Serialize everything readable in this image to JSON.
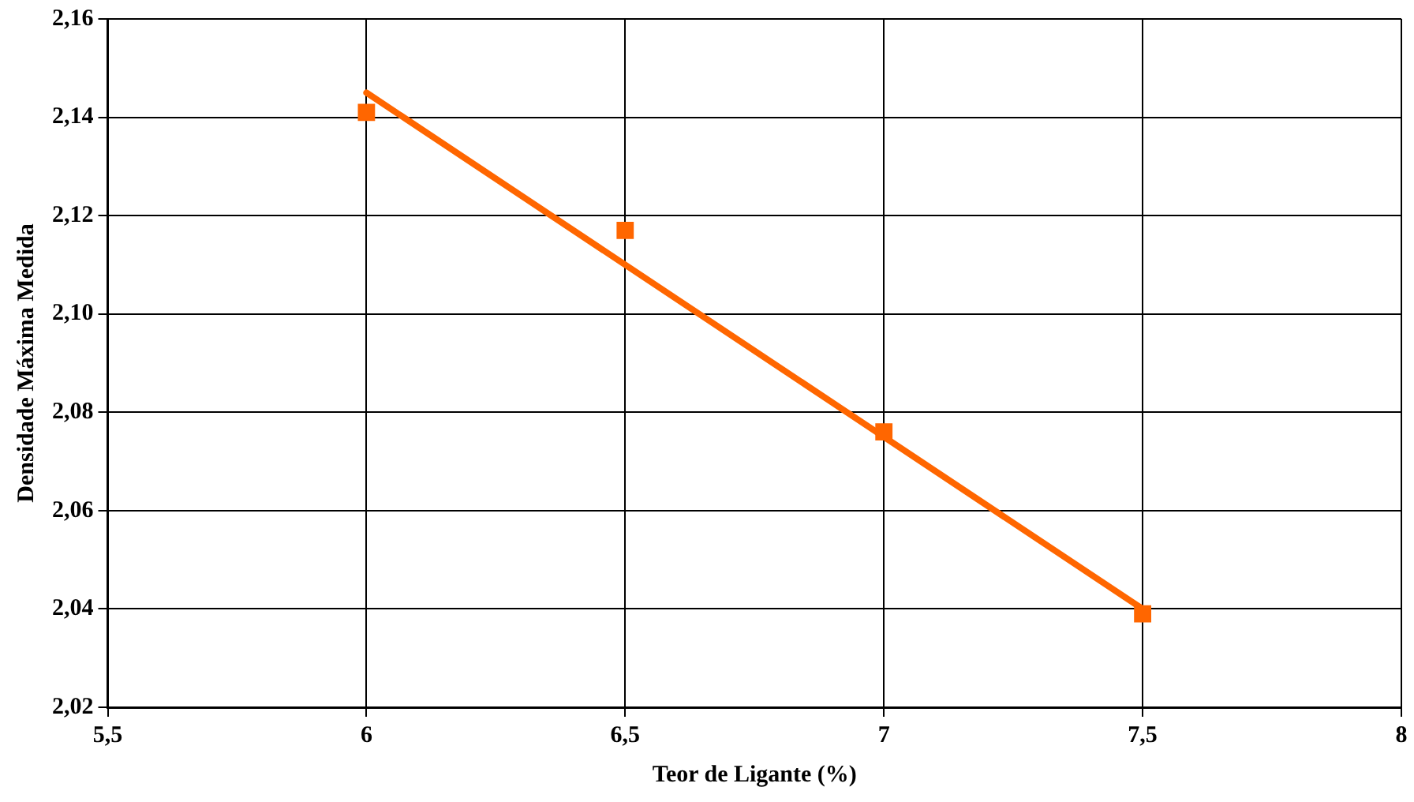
{
  "chart_data": {
    "type": "scatter",
    "xlabel": "Teor de Ligante (%)",
    "ylabel": "Densidade Máxima Medida",
    "series": [
      {
        "color": "#ff6600",
        "marker": "square",
        "x": [
          6,
          6.5,
          7,
          7.5
        ],
        "values": [
          2.141,
          2.117,
          2.076,
          2.039
        ]
      },
      {
        "type": "line",
        "color": "#ff6600",
        "marker": "none",
        "x": [
          6,
          7.5
        ],
        "values": [
          2.145,
          2.04
        ]
      }
    ],
    "xlim": [
      5.5,
      8
    ],
    "xticks": [
      {
        "value": 5.5,
        "label": "5,5"
      },
      6,
      {
        "value": 6.5,
        "label": "6,5"
      },
      7,
      {
        "value": 7.5,
        "label": "7,5"
      },
      8
    ],
    "ylim": [
      2.02,
      2.16
    ],
    "yticks": [
      {
        "value": 2.02,
        "label": "2,02"
      },
      {
        "value": 2.04,
        "label": "2,04"
      },
      {
        "value": 2.06,
        "label": "2,06"
      },
      {
        "value": 2.08,
        "label": "2,08"
      },
      {
        "value": 2.1,
        "label": "2,10"
      },
      {
        "value": 2.12,
        "label": "2,12"
      },
      {
        "value": 2.14,
        "label": "2,14"
      },
      {
        "value": 2.16,
        "label": "2,16"
      }
    ],
    "grid": true,
    "legend": false
  }
}
